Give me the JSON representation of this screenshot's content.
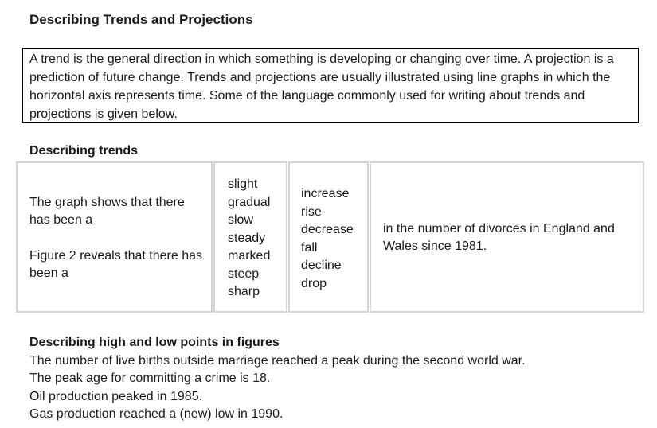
{
  "title": "Describing Trends and Projections",
  "intro": "A trend is the general direction in which something is developing or changing over time. A projection is a prediction of future change. Trends and projections are usually illustrated using line graphs in which the horizontal axis represents time. Some of the language commonly used for writing about trends and projections is given below.",
  "trends_heading": "Describing trends",
  "table": {
    "openers": [
      "The graph shows that there has been a",
      "Figure 2  reveals that there has been a"
    ],
    "adjectives": [
      "slight",
      "gradual",
      "slow",
      "steady",
      "marked",
      "steep",
      "sharp"
    ],
    "nouns": [
      "increase",
      "rise",
      "decrease",
      "fall",
      "decline",
      "drop"
    ],
    "ending": "in the number of divorces in England and Wales since 1981."
  },
  "highlow": {
    "heading": "Describing high and low points in figures",
    "sentences": [
      "The number of live births outside marriage reached a peak during the second world war.",
      "The peak age for committing a crime is 18.",
      "Oil production peaked in 1985.",
      "Gas production reached a (new) low in 1990."
    ]
  }
}
